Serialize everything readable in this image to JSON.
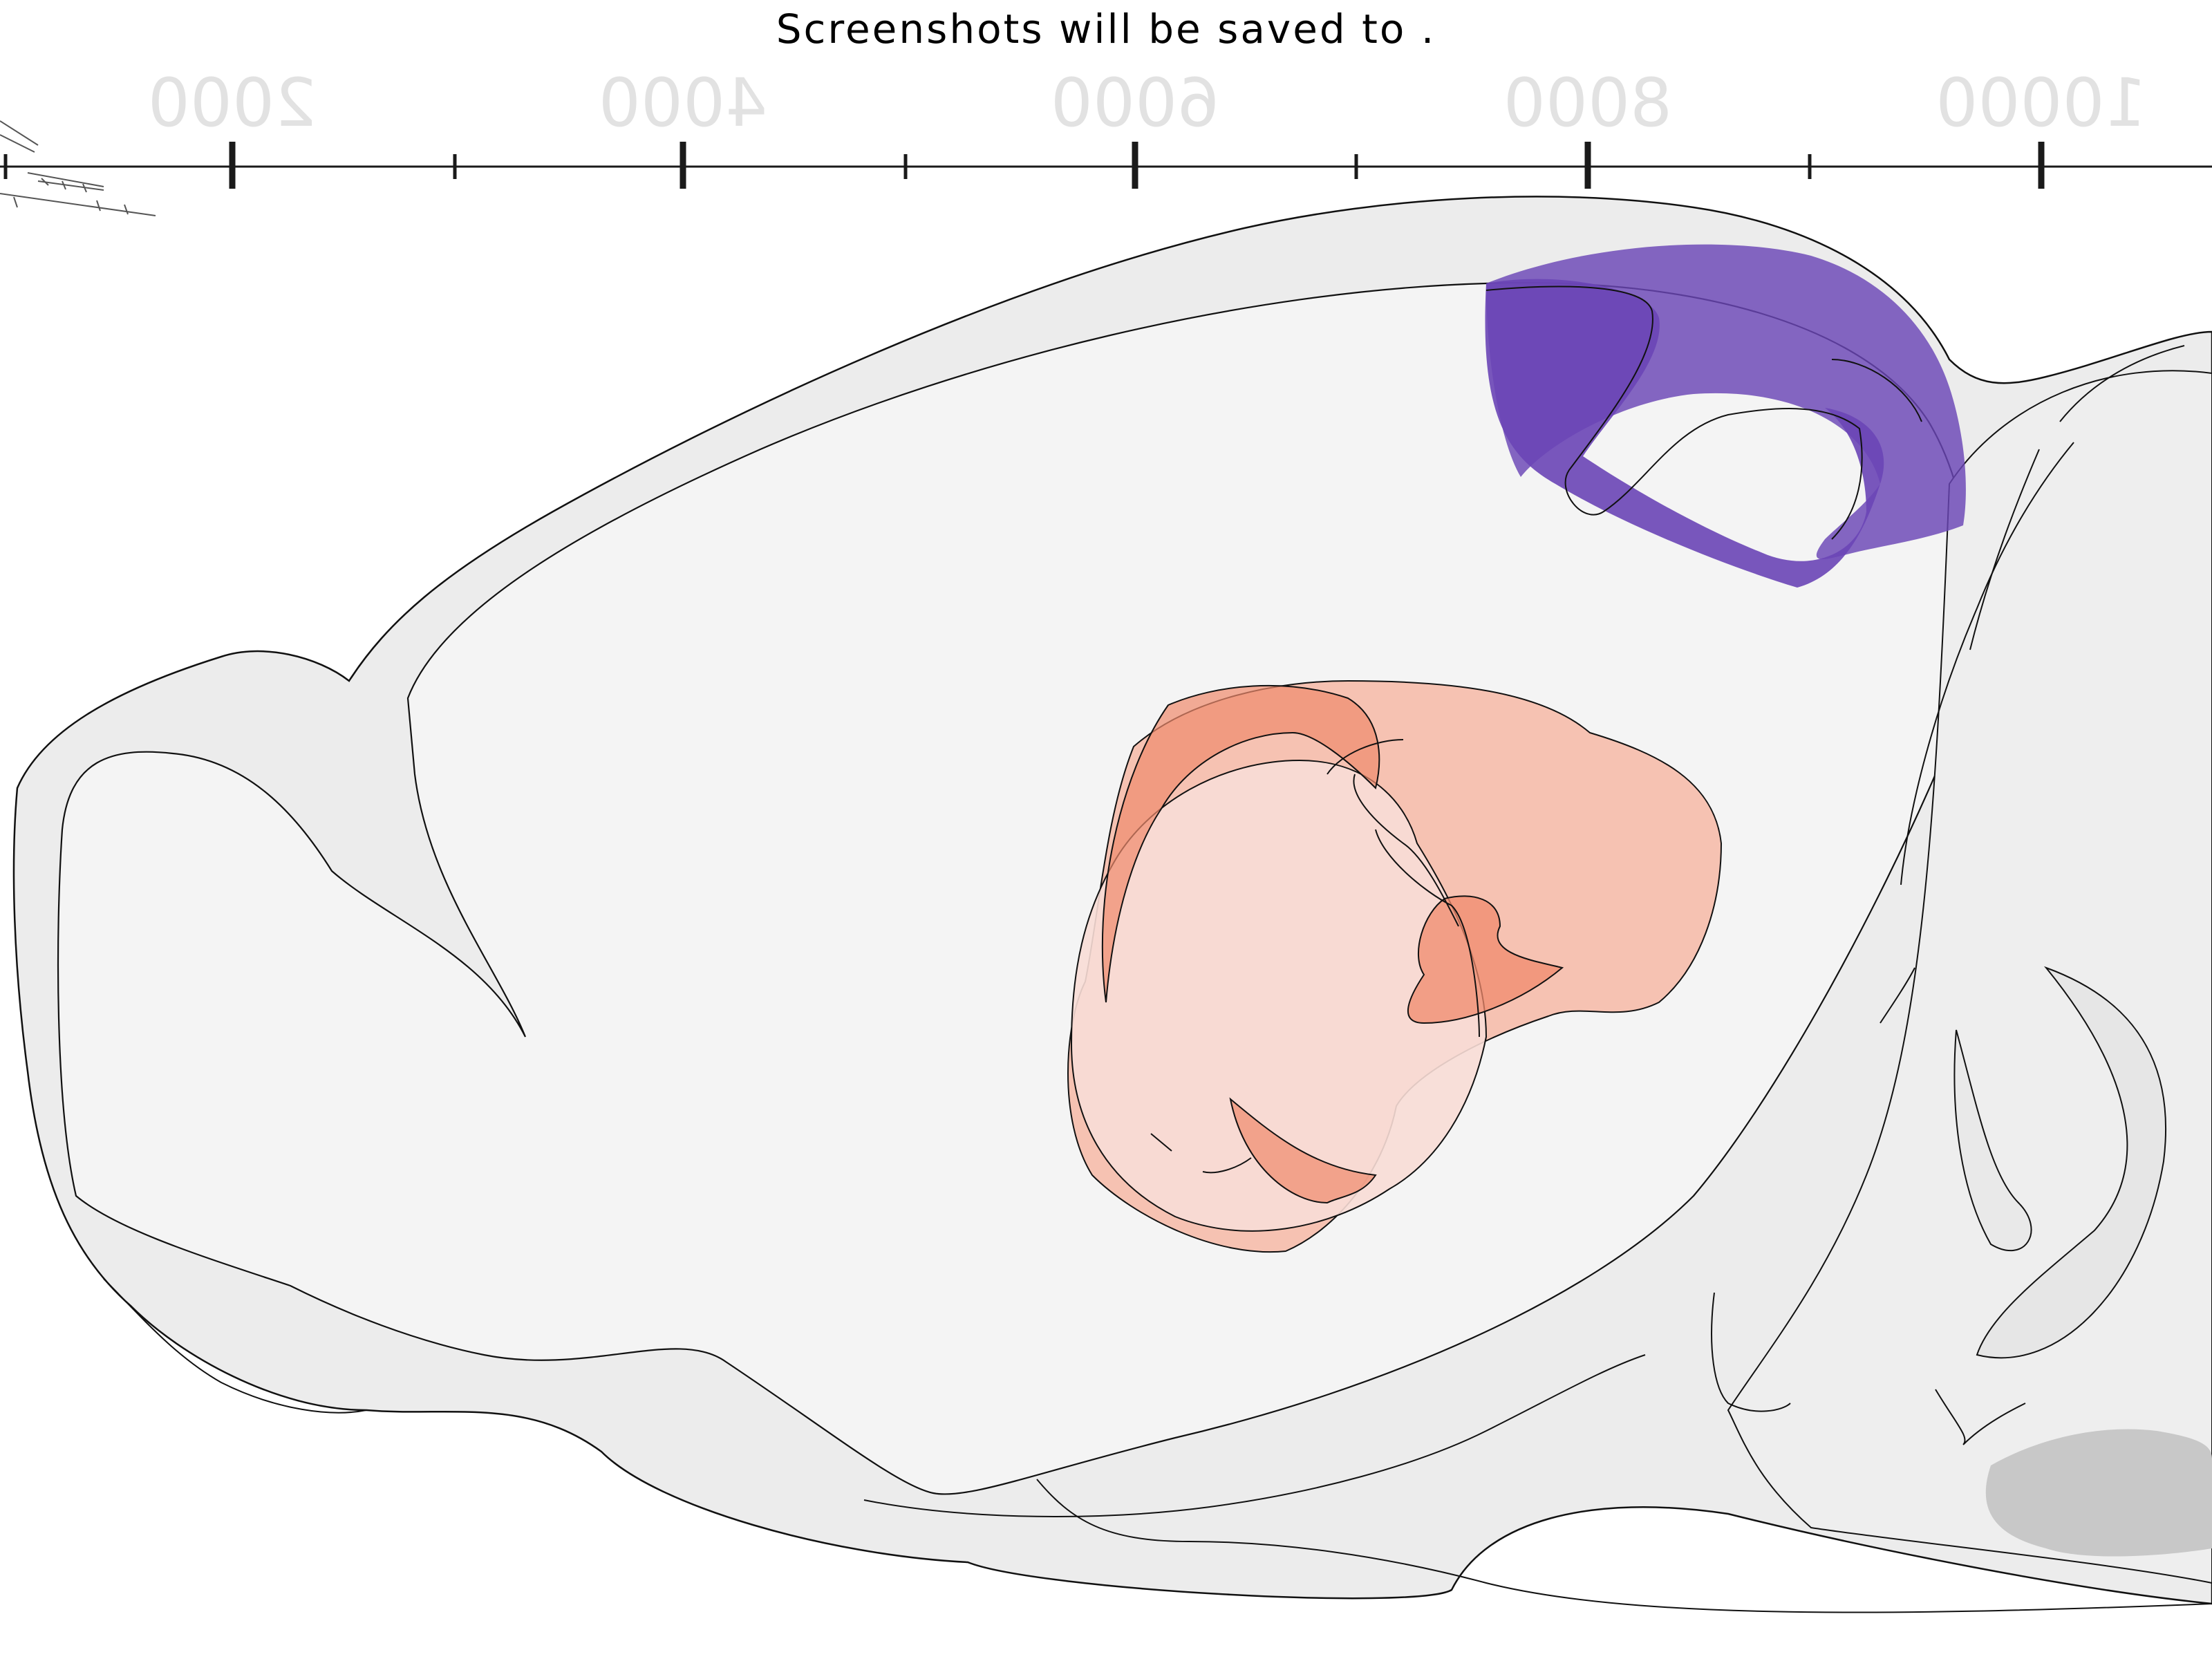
{
  "status_message": "Screenshots will be saved to .",
  "ruler": {
    "tick_labels": [
      "2000",
      "4000",
      "6000",
      "8000",
      "10000"
    ],
    "label_color": "#e2e2e2",
    "labels_mirrored": true
  },
  "colors": {
    "brain_outline_fill": "#ececec",
    "brain_inner_fill": "#f4f4f4",
    "outline_stroke": "#111111",
    "striatum_region": "#f6b8a6",
    "striatum_subregion": "#f08a6c",
    "thalamus_region": "#f6d2cc",
    "dorsal_region": "#6a45b6",
    "hindbrain_shade": "#c8c8c8"
  }
}
